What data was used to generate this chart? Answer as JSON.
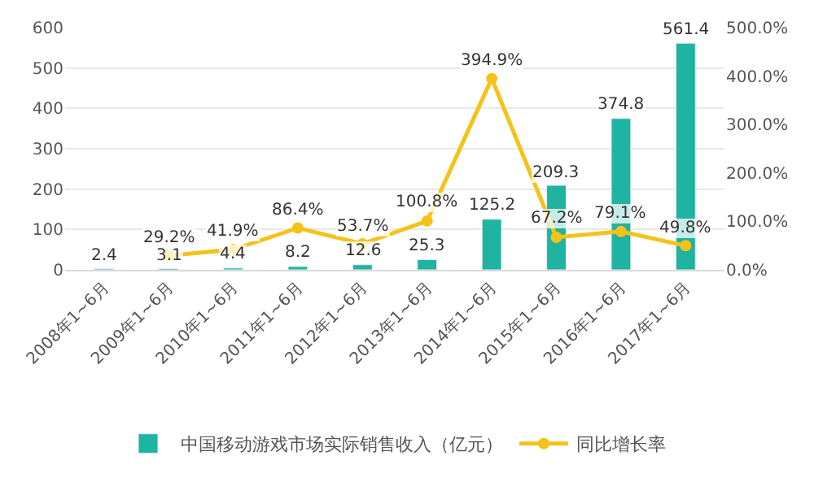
{
  "chart_data": {
    "type": "bar",
    "categories": [
      "2008年1~6月",
      "2009年1~6月",
      "2010年1~6月",
      "2011年1~6月",
      "2012年1~6月",
      "2013年1~6月",
      "2014年1~6月",
      "2015年1~6月",
      "2016年1~6月",
      "2017年1~6月"
    ],
    "series": [
      {
        "name": "中国移动游戏市场实际销售收入（亿元）",
        "color": "#1fb3a1",
        "values": [
          2.4,
          3.1,
          4.4,
          8.2,
          12.6,
          25.3,
          125.2,
          209.3,
          374.8,
          561.4
        ],
        "value_labels": [
          "2.4",
          "3.1",
          "4.4",
          "8.2",
          "12.6",
          "25.3",
          "125.2",
          "209.3",
          "374.8",
          "561.4"
        ]
      },
      {
        "name": "同比增长率",
        "type": "line",
        "axis": "y2",
        "color": "#f5c21b",
        "marker": "circle",
        "values": [
          null,
          29.2,
          41.9,
          86.4,
          53.7,
          100.8,
          394.9,
          67.2,
          79.1,
          49.8
        ],
        "value_labels": [
          null,
          "29.2%",
          "41.9%",
          "86.4%",
          "53.7%",
          "100.8%",
          "394.9%",
          "67.2%",
          "79.1%",
          "49.8%"
        ]
      }
    ],
    "ylim": [
      0,
      600
    ],
    "yticks": [
      0,
      100,
      200,
      300,
      400,
      500,
      600
    ],
    "y2lim": [
      0,
      500
    ],
    "y2ticks": [
      {
        "value": 0,
        "label": "0.0%"
      },
      {
        "value": 100,
        "label": "100.0%"
      },
      {
        "value": 200,
        "label": "200.0%"
      },
      {
        "value": 300,
        "label": "300.0%"
      },
      {
        "value": 400,
        "label": "400.0%"
      },
      {
        "value": 500,
        "label": "500.0%"
      }
    ],
    "grid": "y",
    "legend": "bottom"
  }
}
